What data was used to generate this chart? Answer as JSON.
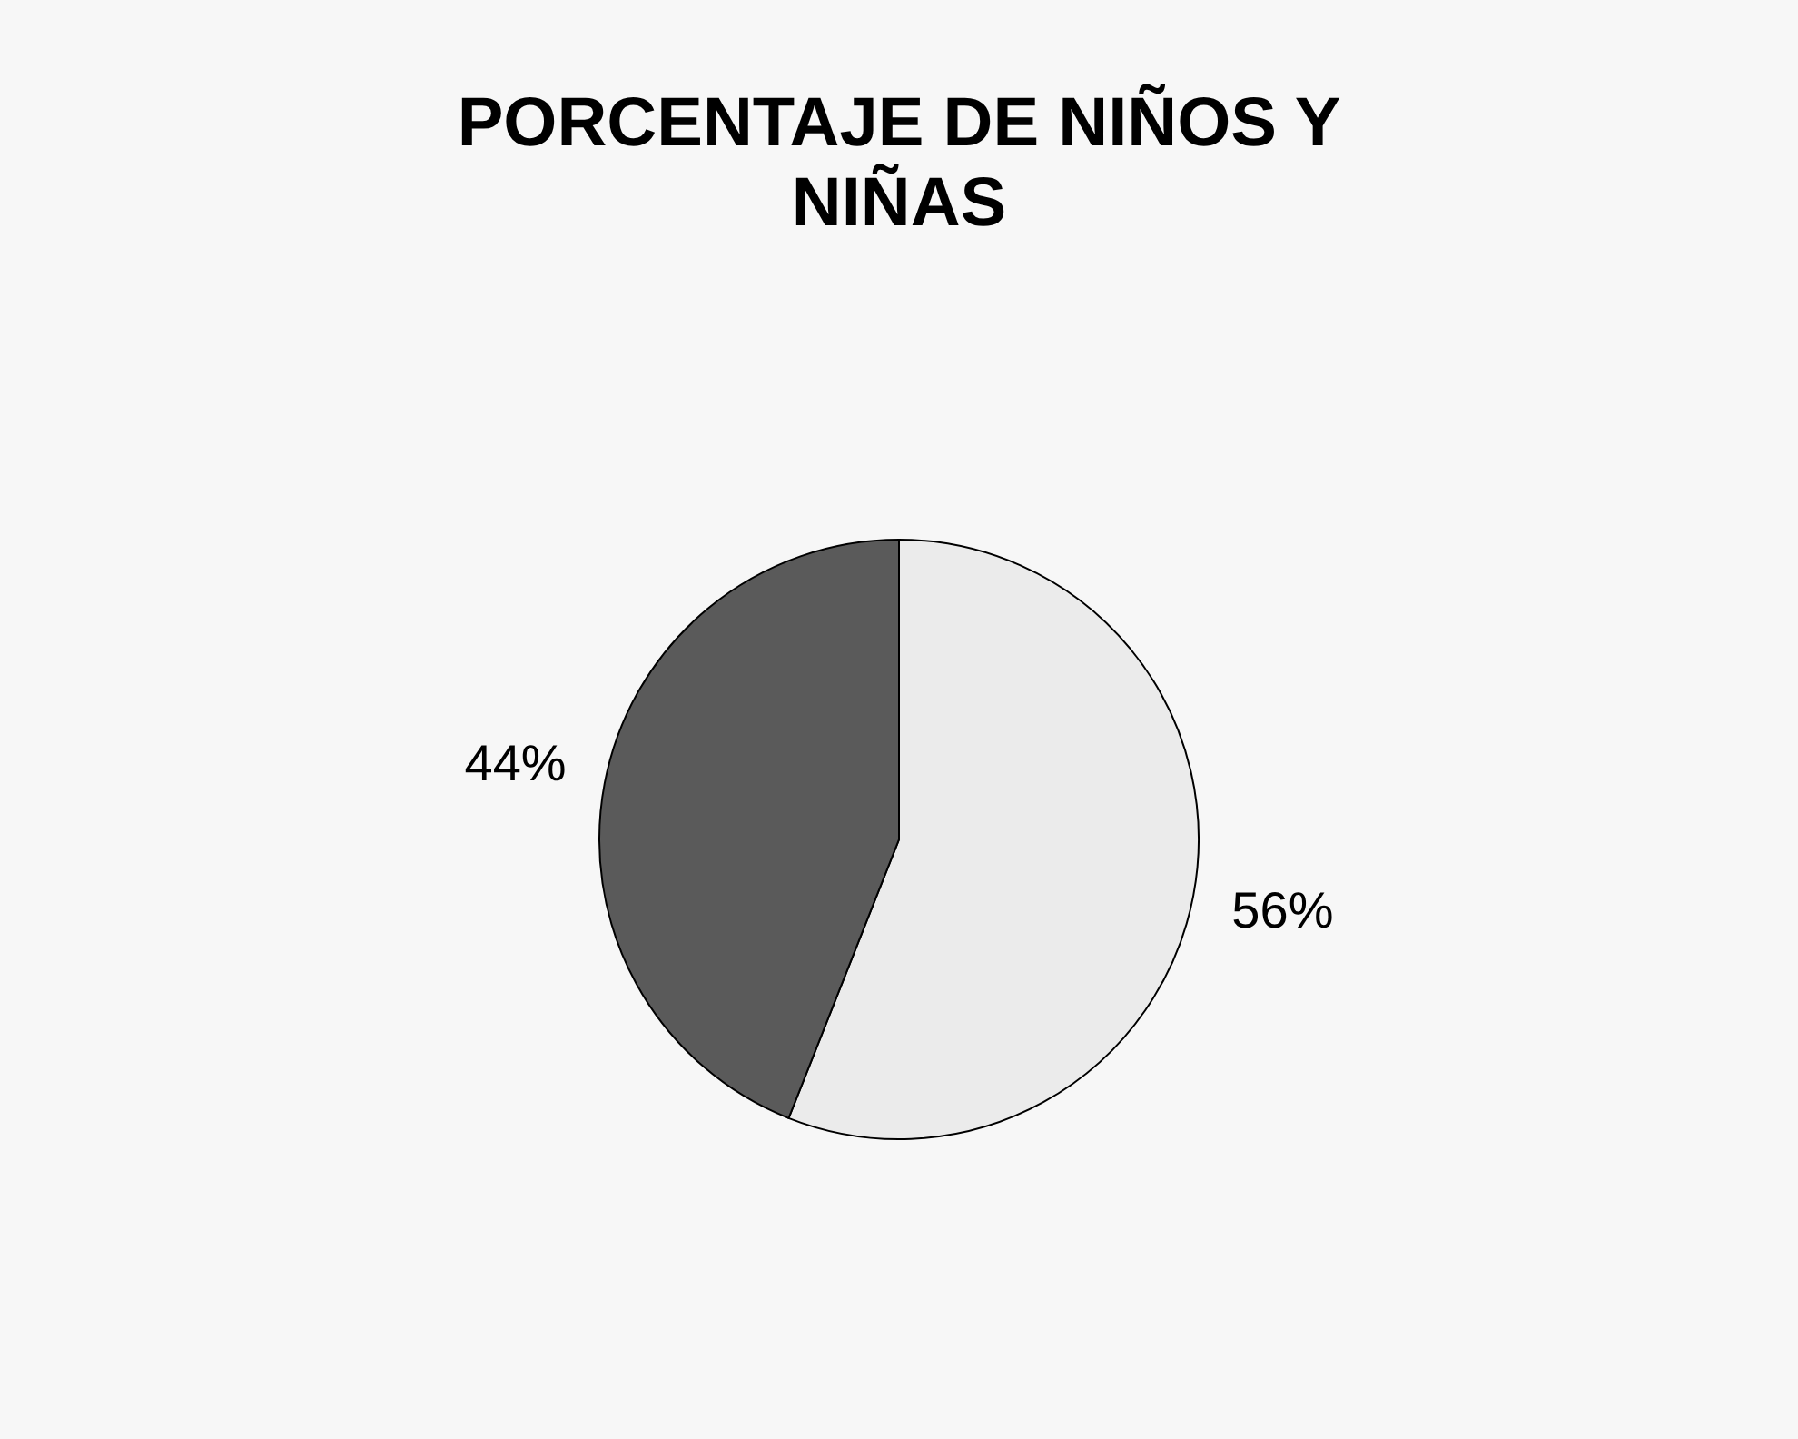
{
  "chart_data": {
    "type": "pie",
    "title": [
      "PORCENTAJE DE NIÑOS Y",
      "NIÑAS"
    ],
    "categories": [
      null,
      null
    ],
    "values": [
      56,
      44
    ],
    "colors": [
      "#ebebeb",
      "#5a5a5a"
    ],
    "value_labels": [
      "56%",
      "44%"
    ],
    "legend": false
  }
}
